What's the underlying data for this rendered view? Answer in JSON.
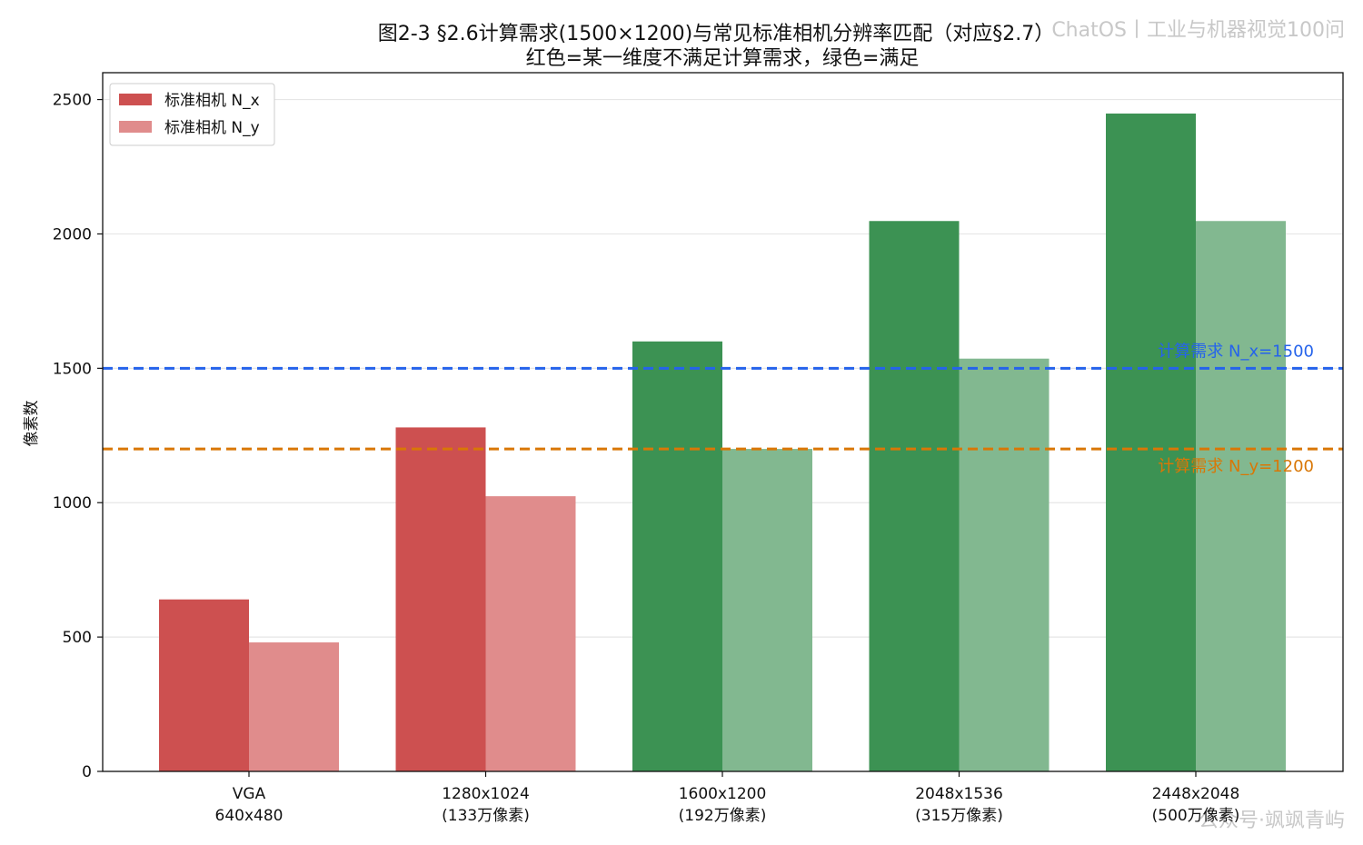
{
  "chart_data": {
    "type": "bar",
    "title": "图2-3 §2.6计算需求(1500×1200)与常见标准相机分辨率匹配（对应§2.7）",
    "subtitle": "红色=某一维度不满足计算需求，绿色=满足",
    "ylabel": "像素数",
    "xlabel": "",
    "ylim": [
      0,
      2600
    ],
    "yticks": [
      0,
      500,
      1000,
      1500,
      2000,
      2500
    ],
    "grid": true,
    "legend_position": "top-left",
    "categories": [
      [
        "VGA",
        "640x480"
      ],
      [
        "1280x1024",
        "(133万像素)"
      ],
      [
        "1600x1200",
        "(192万像素)"
      ],
      [
        "2048x1536",
        "(315万像素)"
      ],
      [
        "2448x2048",
        "(500万像素)"
      ]
    ],
    "series": [
      {
        "name": "标准相机 N_x",
        "values": [
          640,
          1280,
          1600,
          2048,
          2448
        ]
      },
      {
        "name": "标准相机 N_y",
        "values": [
          480,
          1024,
          1200,
          1536,
          2048
        ]
      }
    ],
    "meets_requirement": [
      false,
      false,
      true,
      true,
      true
    ],
    "reference_lines": [
      {
        "label": "计算需求 N_x=1500",
        "value": 1500,
        "color": "#2563eb"
      },
      {
        "label": "计算需求 N_y=1200",
        "value": 1200,
        "color": "#d97706"
      }
    ],
    "colors": {
      "fail_x": "#cd5050",
      "fail_y": "#e08c8c",
      "pass_x": "#3c9253",
      "pass_y": "#82b890",
      "legend_x": "#cd5050",
      "legend_y": "#e08c8c"
    }
  },
  "watermarks": {
    "top_right": "ChatOS丨工业与机器视觉100问",
    "bottom_right": "公众号·飒飒青屿"
  }
}
